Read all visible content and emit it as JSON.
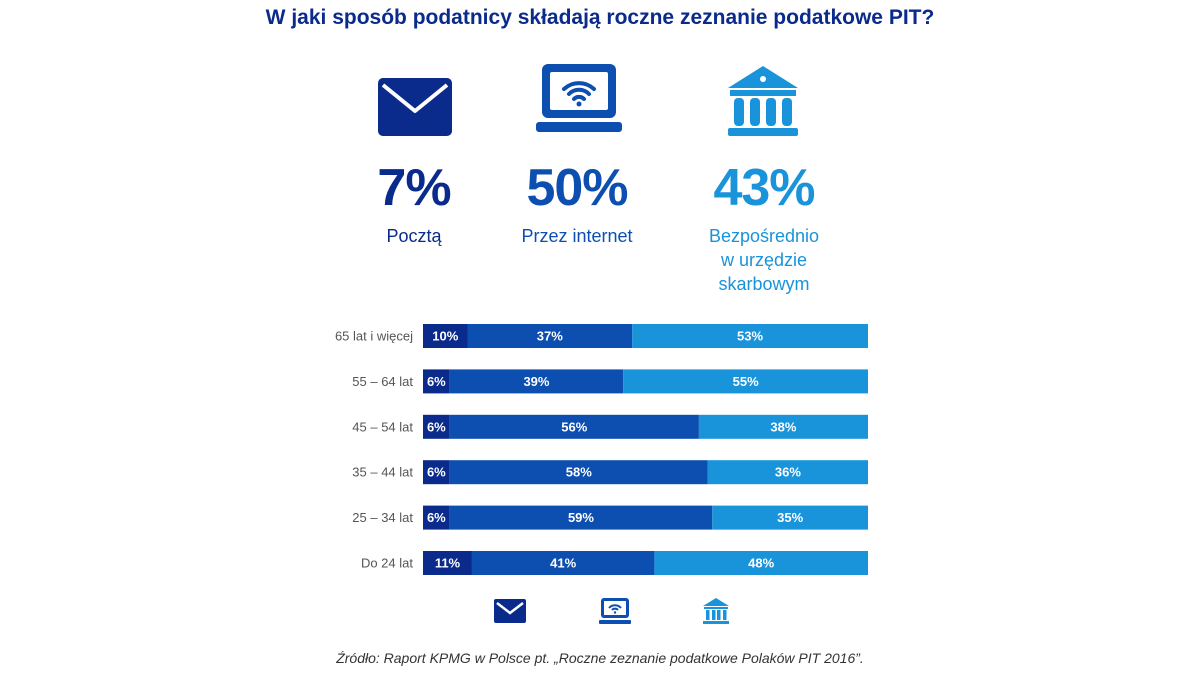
{
  "title": "W jaki sposób podatnicy składają roczne zeznanie podatkowe PIT?",
  "summary": [
    {
      "icon": "envelope-icon",
      "value": "7%",
      "label": [
        "Pocztą"
      ],
      "color": "#0a2a8c"
    },
    {
      "icon": "laptop-wifi-icon",
      "value": "50%",
      "label": [
        "Przez internet"
      ],
      "color": "#0d4fb0"
    },
    {
      "icon": "bank-building-icon",
      "value": "43%",
      "label": [
        "Bezpośrednio",
        "w urzędzie",
        "skarbowym"
      ],
      "color": "#1993da"
    }
  ],
  "colors": {
    "post": "#0a2a8c",
    "internet": "#0d4fb0",
    "office": "#1993da"
  },
  "chart_data": {
    "type": "bar",
    "stacked": true,
    "orientation": "horizontal",
    "categories": [
      "65 lat i więcej",
      "55 – 64 lat",
      "45 – 54 lat",
      "35 – 44 lat",
      "25 – 34 lat",
      "Do 24 lat"
    ],
    "series": [
      {
        "values": [
          10,
          6,
          6,
          6,
          6,
          11
        ],
        "color": "#0a2a8c",
        "legend_icon": "envelope-icon"
      },
      {
        "values": [
          37,
          39,
          56,
          58,
          59,
          41
        ],
        "color": "#0d4fb0",
        "legend_icon": "laptop-wifi-icon"
      },
      {
        "values": [
          53,
          55,
          38,
          36,
          35,
          48
        ],
        "color": "#1993da",
        "legend_icon": "bank-building-icon"
      }
    ],
    "value_suffix": "%"
  },
  "source": "Źródło: Raport KPMG w Polsce pt. „Roczne zeznanie podatkowe Polaków PIT 2016”."
}
